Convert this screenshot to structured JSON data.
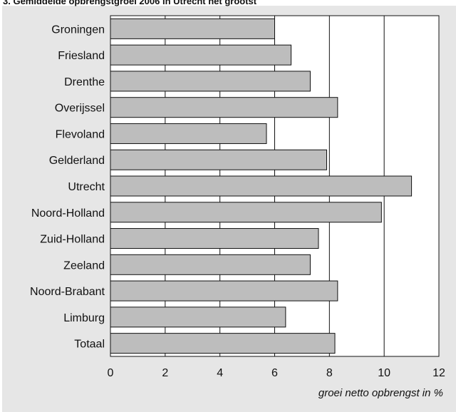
{
  "chart_data": {
    "type": "bar",
    "orientation": "horizontal",
    "title": "3. Gemiddelde opbrengstgroei 2006 in Utrecht het grootst",
    "xlabel": "groei netto opbrengst in %",
    "ylabel": "",
    "xlim": [
      0,
      12
    ],
    "xticks": [
      0,
      2,
      4,
      6,
      8,
      10,
      12
    ],
    "gridlines": "vertical",
    "categories": [
      "Groningen",
      "Friesland",
      "Drenthe",
      "Overijssel",
      "Flevoland",
      "Gelderland",
      "Utrecht",
      "Noord-Holland",
      "Zuid-Holland",
      "Zeeland",
      "Noord-Brabant",
      "Limburg",
      "Totaal"
    ],
    "values": [
      6.0,
      6.6,
      7.3,
      8.3,
      5.7,
      7.9,
      11.0,
      9.9,
      7.6,
      7.3,
      8.3,
      6.4,
      8.2
    ],
    "colors": {
      "bar": "#bdbdbd",
      "bar_stroke": "#111111",
      "panel": "#e6e6e6",
      "plot": "#ffffff"
    }
  }
}
